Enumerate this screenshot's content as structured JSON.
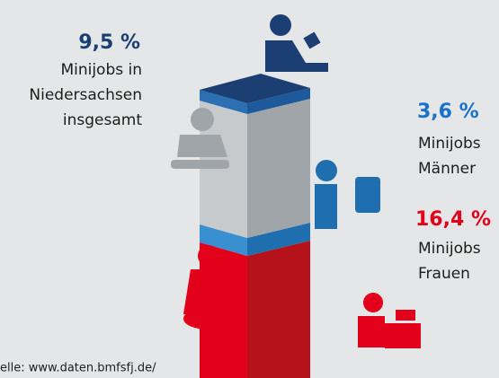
{
  "labels": [
    {
      "value": "9,5 %",
      "lines": [
        "Minijobs in",
        "Niedersachsen",
        "insgesamt"
      ]
    },
    {
      "value": "3,6 %",
      "lines": [
        "Minijobs",
        "Männer"
      ]
    },
    {
      "value": "16,4 %",
      "lines": [
        "Minijobs",
        "Frauen"
      ]
    }
  ],
  "source": "elle: www.daten.bmfsfj.de/"
}
